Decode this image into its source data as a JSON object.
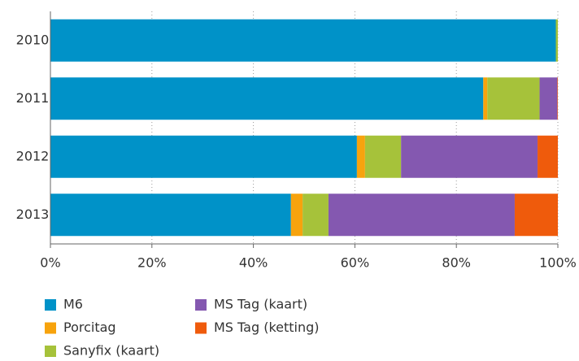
{
  "chart_data": {
    "type": "stacked-bar-horizontal",
    "categories": [
      "2010",
      "2011",
      "2012",
      "2013"
    ],
    "series": [
      {
        "name": "M6",
        "color": "#0092c8",
        "values": [
          99.6,
          85.3,
          60.4,
          47.4
        ]
      },
      {
        "name": "Porcitag",
        "color": "#f7a30d",
        "values": [
          0,
          0.8,
          1.6,
          2.3
        ]
      },
      {
        "name": "Sanyfix (kaart)",
        "color": "#a6c23a",
        "values": [
          0.4,
          10.3,
          7.1,
          5.1
        ]
      },
      {
        "name": "MS Tag (kaart)",
        "color": "#8458b0",
        "values": [
          0,
          3.5,
          26.9,
          36.7
        ]
      },
      {
        "name": "MS Tag (ketting)",
        "color": "#ef5b0c",
        "values": [
          0,
          0.1,
          4.0,
          8.5
        ]
      }
    ],
    "xlim": [
      0,
      100
    ],
    "xticks": [
      {
        "value": 0,
        "label": "0%"
      },
      {
        "value": 20,
        "label": "20%"
      },
      {
        "value": 40,
        "label": "40%"
      },
      {
        "value": 60,
        "label": "60%"
      },
      {
        "value": 80,
        "label": "80%"
      },
      {
        "value": 100,
        "label": "100%"
      }
    ],
    "grid": true
  }
}
